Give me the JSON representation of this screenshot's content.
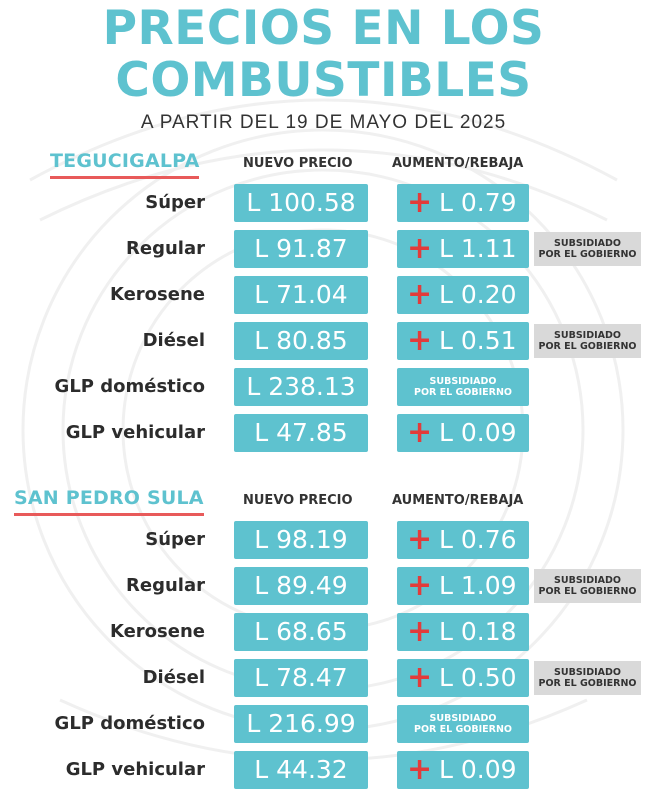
{
  "title_line1": "PRECIOS EN LOS",
  "title_line2": "COMBUSTIBLES",
  "subtitle": "A PARTIR DEL 19 DE MAYO DEL 2025",
  "col_new_price": "NUEVO PRECIO",
  "col_change": "AUMENTO/REBAJA",
  "subsidy_line1": "SUBSIDIADO",
  "subsidy_line2": "POR EL GOBIERNO",
  "plus_sign": "+",
  "colors": {
    "accent": "#5ec2cf",
    "red": "#e23b3b",
    "note_bg": "#d9d9d9"
  },
  "sections": [
    {
      "city": "TEGUCIGALPA",
      "rows": [
        {
          "fuel": "Súper",
          "price": "L 100.58",
          "change": "L 0.79"
        },
        {
          "fuel": "Regular",
          "price": "L 91.87",
          "change": "L 1.11",
          "note": true
        },
        {
          "fuel": "Kerosene",
          "price": "L 71.04",
          "change": "L 0.20"
        },
        {
          "fuel": "Diésel",
          "price": "L 80.85",
          "change": "L 0.51",
          "note": true
        },
        {
          "fuel": "GLP doméstico",
          "price": "L 238.13",
          "subsidized": true
        },
        {
          "fuel": "GLP vehicular",
          "price": "L 47.85",
          "change": "L 0.09"
        }
      ]
    },
    {
      "city": "SAN PEDRO SULA",
      "rows": [
        {
          "fuel": "Súper",
          "price": "L 98.19",
          "change": "L 0.76"
        },
        {
          "fuel": "Regular",
          "price": "L 89.49",
          "change": "L 1.09",
          "note": true
        },
        {
          "fuel": "Kerosene",
          "price": "L 68.65",
          "change": "L 0.18"
        },
        {
          "fuel": "Diésel",
          "price": "L 78.47",
          "change": "L 0.50",
          "note": true
        },
        {
          "fuel": "GLP doméstico",
          "price": "L 216.99",
          "subsidized": true
        },
        {
          "fuel": "GLP vehicular",
          "price": "L 44.32",
          "change": "L 0.09"
        }
      ]
    }
  ]
}
